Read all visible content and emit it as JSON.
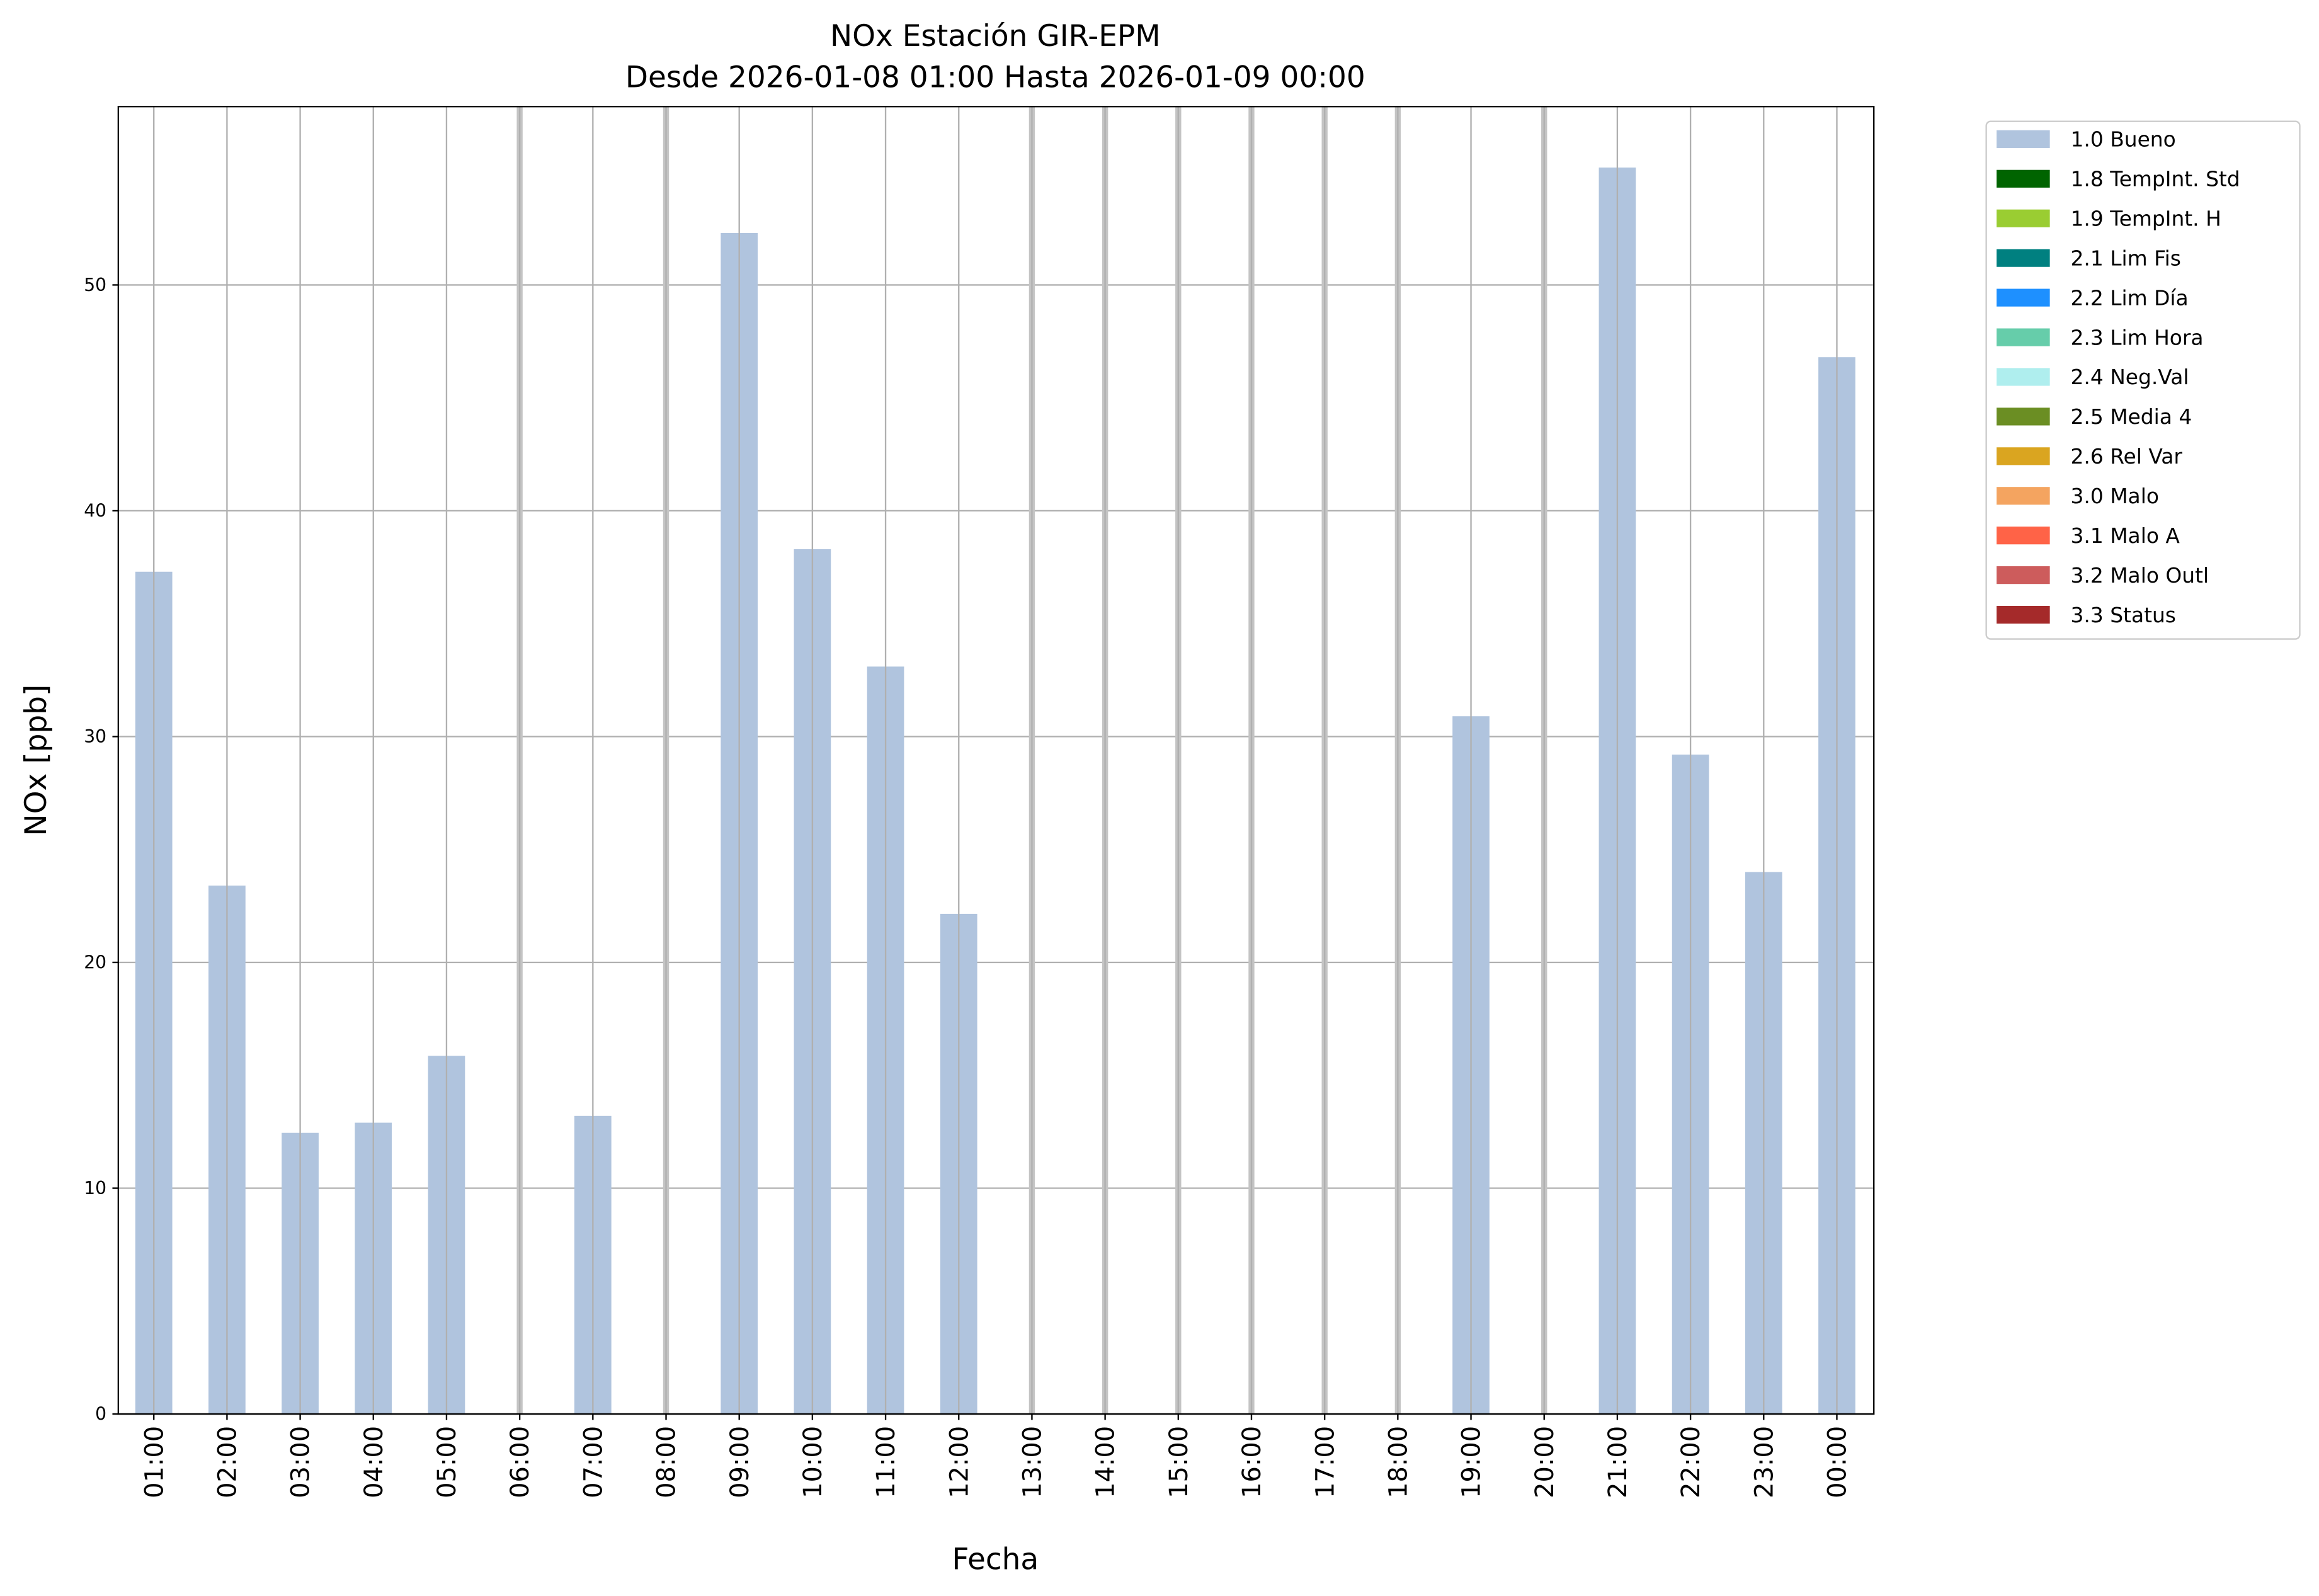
{
  "chart_data": {
    "type": "bar",
    "title": "NOx Estación GIR-EPM",
    "subtitle": "Desde 2026-01-08 01:00 Hasta 2026-01-09 00:00",
    "xlabel": "Fecha",
    "ylabel": "NOx [ppb]",
    "ylim": [
      0,
      57.9
    ],
    "yticks": [
      0,
      10,
      20,
      30,
      40,
      50
    ],
    "grid": true,
    "legend_placement": "outside-top-right",
    "categories": [
      "01:00",
      "02:00",
      "03:00",
      "04:00",
      "05:00",
      "06:00",
      "07:00",
      "08:00",
      "09:00",
      "10:00",
      "11:00",
      "12:00",
      "13:00",
      "14:00",
      "15:00",
      "16:00",
      "17:00",
      "18:00",
      "19:00",
      "20:00",
      "21:00",
      "22:00",
      "23:00",
      "00:00"
    ],
    "series": [
      {
        "name": "1.0 Bueno",
        "color": "#b0c4de",
        "values": [
          37.3,
          23.4,
          12.45,
          12.9,
          15.86,
          null,
          13.2,
          null,
          52.3,
          38.3,
          33.1,
          22.15,
          null,
          null,
          null,
          null,
          null,
          null,
          30.9,
          null,
          55.2,
          29.2,
          24.0,
          46.8
        ]
      }
    ],
    "legend": [
      {
        "label": "1.0 Bueno",
        "color": "#b0c4de"
      },
      {
        "label": "1.8 TempInt. Std",
        "color": "#006400"
      },
      {
        "label": "1.9 TempInt. H",
        "color": "#9acd32"
      },
      {
        "label": "2.1 Lim Fis",
        "color": "#008080"
      },
      {
        "label": "2.2 Lim Día",
        "color": "#1e90ff"
      },
      {
        "label": "2.3 Lim Hora",
        "color": "#66cdaa"
      },
      {
        "label": "2.4 Neg.Val",
        "color": "#afeeee"
      },
      {
        "label": "2.5 Media 4",
        "color": "#6b8e23"
      },
      {
        "label": "2.6 Rel Var",
        "color": "#daa520"
      },
      {
        "label": "3.0 Malo",
        "color": "#f4a460"
      },
      {
        "label": "3.1 Malo A",
        "color": "#ff6347"
      },
      {
        "label": "3.2 Malo Outl",
        "color": "#cd5c5c"
      },
      {
        "label": "3.3 Status",
        "color": "#a52a2a"
      }
    ]
  }
}
